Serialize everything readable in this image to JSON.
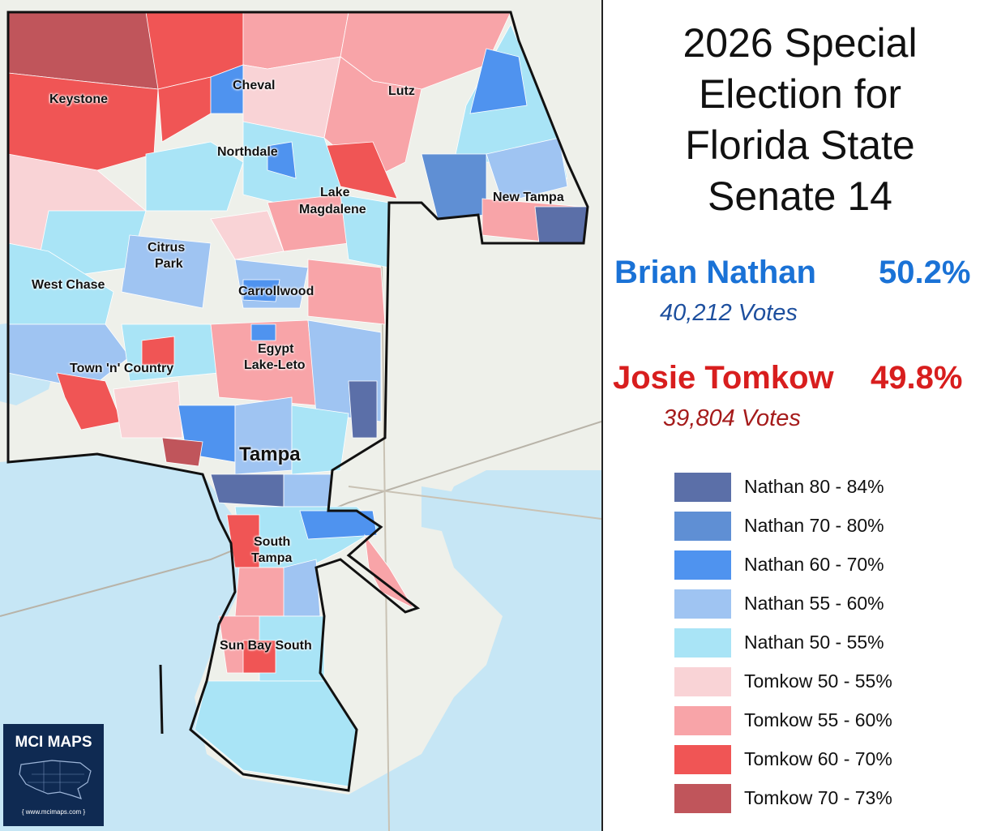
{
  "title": {
    "line1": "2026 Special",
    "line2": "Election for",
    "line3": "Florida State",
    "line4": "Senate 14"
  },
  "candidates": [
    {
      "name": "Brian Nathan",
      "percent": "50.2%",
      "votes": "40,212  Votes",
      "color": "#1a72d6",
      "votes_color": "#1d4f9e"
    },
    {
      "name": "Josie Tomkow",
      "percent": "49.8%",
      "votes": "39,804  Votes",
      "color": "#d81e1e",
      "votes_color": "#a51b1b"
    }
  ],
  "legend": [
    {
      "label": "Nathan 80 - 84%",
      "color": "#5b6fa8"
    },
    {
      "label": "Nathan 70 - 80%",
      "color": "#5f8fd4"
    },
    {
      "label": "Nathan 60 - 70%",
      "color": "#4f93ef"
    },
    {
      "label": "Nathan 55 - 60%",
      "color": "#9fc4f2"
    },
    {
      "label": "Nathan 50 - 55%",
      "color": "#a9e4f6"
    },
    {
      "label": "Tomkow 50 - 55%",
      "color": "#f9d3d6"
    },
    {
      "label": "Tomkow 55 - 60%",
      "color": "#f8a4a8"
    },
    {
      "label": "Tomkow 60 - 70%",
      "color": "#f05555"
    },
    {
      "label": "Tomkow 70 - 73%",
      "color": "#c0555b"
    }
  ],
  "map": {
    "places": [
      "Cheval",
      "Lutz",
      "Keystone",
      "Northdale",
      "Lake",
      "Magdalene",
      "New Tampa",
      "Citrus",
      "Park",
      "West Chase",
      "Carrollwood",
      "Egypt",
      "Lake-Leto",
      "Town 'n' Country",
      "Tampa",
      "South",
      "Tampa",
      "Sun Bay South"
    ],
    "water_color": "#c6e6f5",
    "land_color": "#eef0ea"
  },
  "logo": {
    "title": "MCI MAPS",
    "url": "{ www.mcimaps.com }"
  }
}
